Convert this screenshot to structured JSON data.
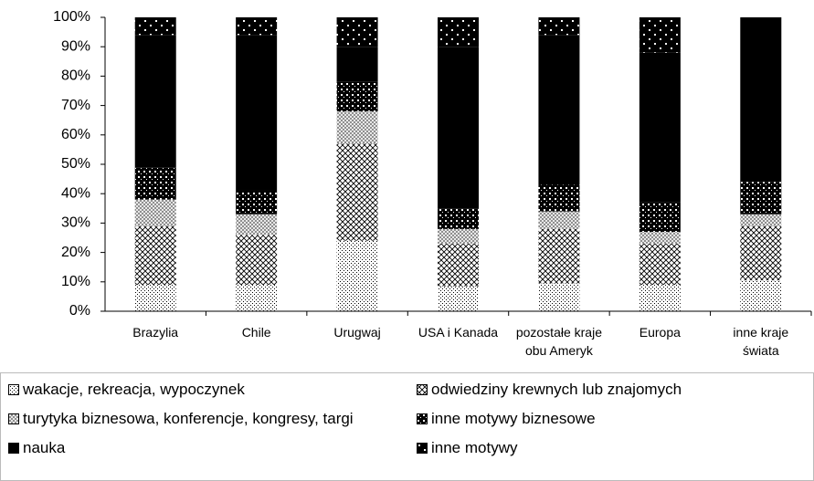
{
  "chart_data": {
    "type": "stacked_bar_100",
    "categories": [
      "Brazylia",
      "Chile",
      "Urugwaj",
      "USA i Kanada",
      "pozostałe kraje obu Ameryk",
      "Europa",
      "inne kraje świata"
    ],
    "series": [
      {
        "name": "wakacje, rekreacja, wypoczynek",
        "values": [
          9,
          9,
          24,
          8.5,
          9.5,
          9,
          10.5
        ]
      },
      {
        "name": "odwiedziny krewnych lub znajomych",
        "values": [
          20,
          17,
          33,
          14.5,
          18.5,
          14,
          18.5
        ]
      },
      {
        "name": "turytyka biznesowa, konferencje, kongresy, targi",
        "values": [
          9,
          7,
          11,
          5,
          6,
          4,
          4
        ]
      },
      {
        "name": "inne motywy biznesowe",
        "values": [
          11,
          8,
          10,
          7,
          9,
          10,
          11
        ]
      },
      {
        "name": "nauka",
        "values": [
          45,
          53,
          12,
          55,
          51,
          51,
          56
        ]
      },
      {
        "name": "inne motywy",
        "values": [
          6,
          6,
          10,
          10,
          6,
          12,
          0
        ]
      }
    ],
    "ylim": [
      0,
      100
    ],
    "yticks": [
      {
        "value": 0,
        "label": "0%"
      },
      {
        "value": 10,
        "label": "10%"
      },
      {
        "value": 20,
        "label": "20%"
      },
      {
        "value": 30,
        "label": "30%"
      },
      {
        "value": 40,
        "label": "40%"
      },
      {
        "value": 50,
        "label": "50%"
      },
      {
        "value": 60,
        "label": "60%"
      },
      {
        "value": 70,
        "label": "70%"
      },
      {
        "value": 80,
        "label": "80%"
      },
      {
        "value": 90,
        "label": "90%"
      },
      {
        "value": 100,
        "label": "100%"
      }
    ]
  }
}
